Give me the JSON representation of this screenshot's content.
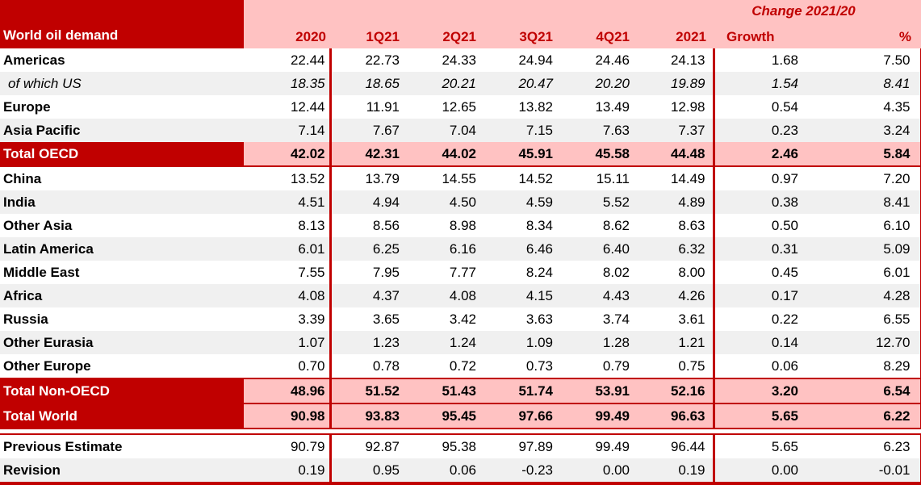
{
  "colors": {
    "dark_red": "#C00000",
    "pink_highlight": "#FFC2C2",
    "row_stripe": "#F0F0F0",
    "header_text": "#C00000"
  },
  "chart_data": {
    "type": "table",
    "title": "World oil demand",
    "group_header": "Change 2021/20",
    "columns": [
      "2020",
      "1Q21",
      "2Q21",
      "3Q21",
      "4Q21",
      "2021",
      "Growth",
      "%"
    ],
    "rows": [
      {
        "label": "Americas",
        "style": "normal",
        "shaded": false,
        "section": "main",
        "values": [
          "22.44",
          "22.73",
          "24.33",
          "24.94",
          "24.46",
          "24.13",
          "1.68",
          "7.50"
        ]
      },
      {
        "label": "of which US",
        "style": "sub",
        "shaded": true,
        "section": "main",
        "values": [
          "18.35",
          "18.65",
          "20.21",
          "20.47",
          "20.20",
          "19.89",
          "1.54",
          "8.41"
        ]
      },
      {
        "label": "Europe",
        "style": "normal",
        "shaded": false,
        "section": "main",
        "values": [
          "12.44",
          "11.91",
          "12.65",
          "13.82",
          "13.49",
          "12.98",
          "0.54",
          "4.35"
        ]
      },
      {
        "label": "Asia Pacific",
        "style": "normal",
        "shaded": true,
        "section": "main",
        "values": [
          "7.14",
          "7.67",
          "7.04",
          "7.15",
          "7.63",
          "7.37",
          "0.23",
          "3.24"
        ]
      },
      {
        "label": "Total OECD",
        "style": "total",
        "shaded": false,
        "section": "main",
        "values": [
          "42.02",
          "42.31",
          "44.02",
          "45.91",
          "45.58",
          "44.48",
          "2.46",
          "5.84"
        ]
      },
      {
        "label": "China",
        "style": "normal",
        "shaded": false,
        "section": "main",
        "values": [
          "13.52",
          "13.79",
          "14.55",
          "14.52",
          "15.11",
          "14.49",
          "0.97",
          "7.20"
        ]
      },
      {
        "label": "India",
        "style": "normal",
        "shaded": true,
        "section": "main",
        "values": [
          "4.51",
          "4.94",
          "4.50",
          "4.59",
          "5.52",
          "4.89",
          "0.38",
          "8.41"
        ]
      },
      {
        "label": "Other Asia",
        "style": "normal",
        "shaded": false,
        "section": "main",
        "values": [
          "8.13",
          "8.56",
          "8.98",
          "8.34",
          "8.62",
          "8.63",
          "0.50",
          "6.10"
        ]
      },
      {
        "label": "Latin America",
        "style": "normal",
        "shaded": true,
        "section": "main",
        "values": [
          "6.01",
          "6.25",
          "6.16",
          "6.46",
          "6.40",
          "6.32",
          "0.31",
          "5.09"
        ]
      },
      {
        "label": "Middle East",
        "style": "normal",
        "shaded": false,
        "section": "main",
        "values": [
          "7.55",
          "7.95",
          "7.77",
          "8.24",
          "8.02",
          "8.00",
          "0.45",
          "6.01"
        ]
      },
      {
        "label": "Africa",
        "style": "normal",
        "shaded": true,
        "section": "main",
        "values": [
          "4.08",
          "4.37",
          "4.08",
          "4.15",
          "4.43",
          "4.26",
          "0.17",
          "4.28"
        ]
      },
      {
        "label": "Russia",
        "style": "normal",
        "shaded": false,
        "section": "main",
        "values": [
          "3.39",
          "3.65",
          "3.42",
          "3.63",
          "3.74",
          "3.61",
          "0.22",
          "6.55"
        ]
      },
      {
        "label": "Other Eurasia",
        "style": "normal",
        "shaded": true,
        "section": "main",
        "values": [
          "1.07",
          "1.23",
          "1.24",
          "1.09",
          "1.28",
          "1.21",
          "0.14",
          "12.70"
        ]
      },
      {
        "label": "Other Europe",
        "style": "normal",
        "shaded": false,
        "section": "main",
        "values": [
          "0.70",
          "0.78",
          "0.72",
          "0.73",
          "0.79",
          "0.75",
          "0.06",
          "8.29"
        ]
      },
      {
        "label": "Total Non-OECD",
        "style": "total",
        "shaded": false,
        "section": "main",
        "rule_top": true,
        "values": [
          "48.96",
          "51.52",
          "51.43",
          "51.74",
          "53.91",
          "52.16",
          "3.20",
          "6.54"
        ]
      },
      {
        "label": "Total World",
        "style": "total",
        "shaded": false,
        "section": "main",
        "values": [
          "90.98",
          "93.83",
          "95.45",
          "97.66",
          "99.49",
          "96.63",
          "5.65",
          "6.22"
        ]
      },
      {
        "label": "Previous Estimate",
        "style": "normal",
        "shaded": false,
        "section": "revision",
        "values": [
          "90.79",
          "92.87",
          "95.38",
          "97.89",
          "99.49",
          "96.44",
          "5.65",
          "6.23"
        ]
      },
      {
        "label": "Revision",
        "style": "normal",
        "shaded": true,
        "section": "revision",
        "values": [
          "0.19",
          "0.95",
          "0.06",
          "-0.23",
          "0.00",
          "0.19",
          "0.00",
          "-0.01"
        ]
      }
    ]
  }
}
